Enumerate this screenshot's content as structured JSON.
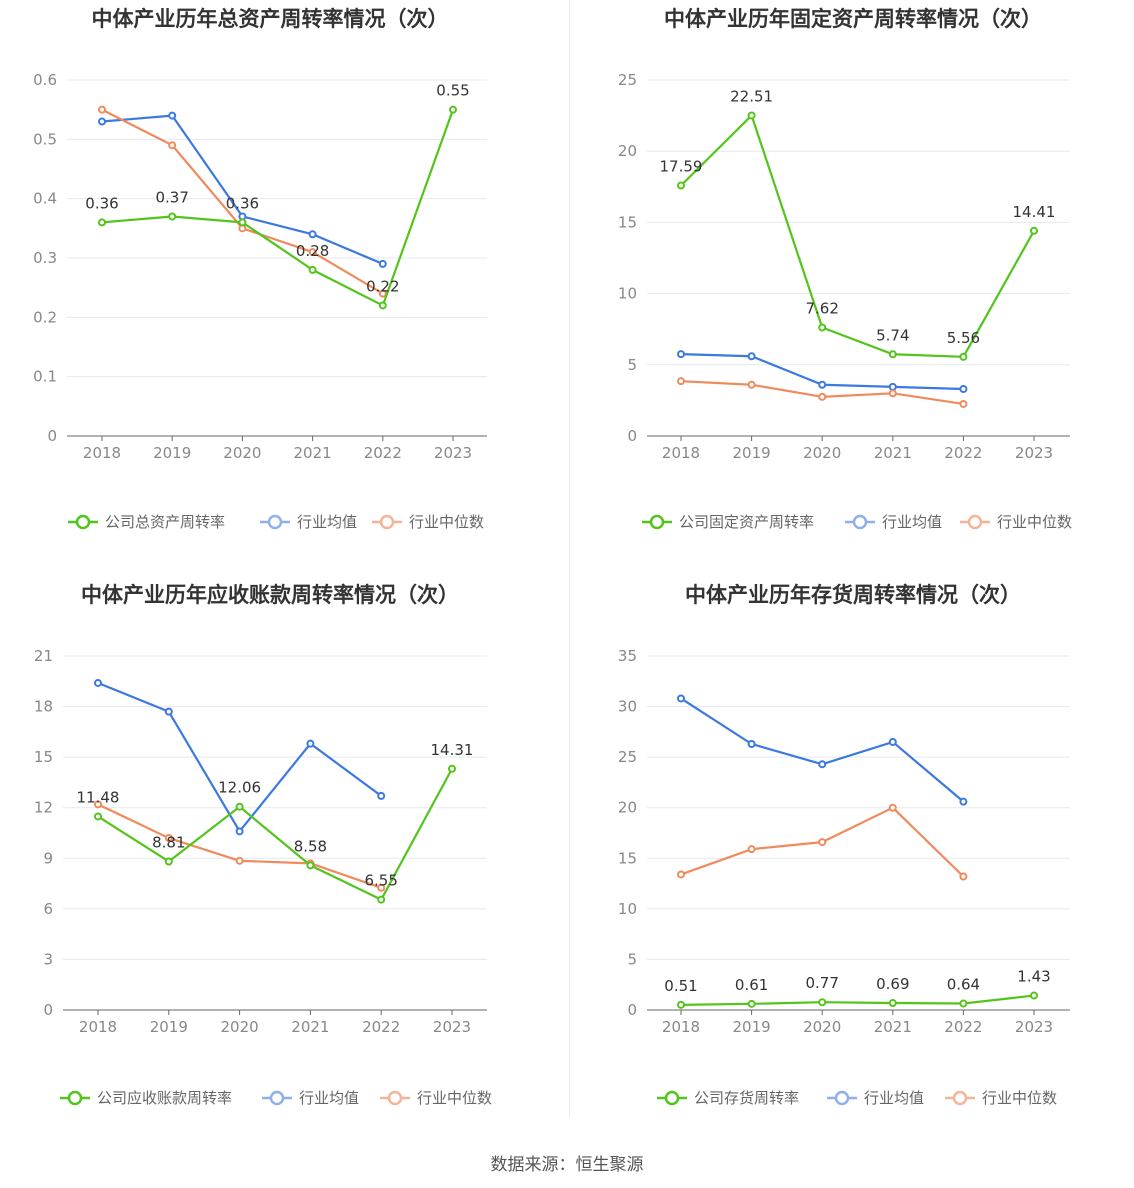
{
  "source_text": "数据来源：恒生聚源",
  "chart_data": [
    {
      "type": "line",
      "title": "中体产业历年总资产周转率情况（次）",
      "categories": [
        "2018",
        "2019",
        "2020",
        "2021",
        "2022",
        "2023"
      ],
      "ylim": [
        0,
        0.6
      ],
      "yticks": [
        "0",
        "0.1",
        "0.2",
        "0.3",
        "0.4",
        "0.5",
        "0.6"
      ],
      "yticks_values": [
        0,
        0.1,
        0.2,
        0.3,
        0.4,
        0.5,
        0.6
      ],
      "grid": true,
      "legend_position": "bottom",
      "series": [
        {
          "name": "公司总资产周转率",
          "color": "#52c41a",
          "values": [
            0.36,
            0.37,
            0.36,
            0.28,
            0.22,
            0.55
          ],
          "labels": [
            "0.36",
            "0.37",
            "0.36",
            "0.28",
            "0.22",
            "0.55"
          ]
        },
        {
          "name": "行业均值",
          "color": "#3b78e0",
          "values": [
            0.53,
            0.54,
            0.37,
            0.34,
            0.29,
            null
          ]
        },
        {
          "name": "行业中位数",
          "color": "#f08a5d",
          "values": [
            0.55,
            0.49,
            0.35,
            0.31,
            0.24,
            null
          ]
        }
      ]
    },
    {
      "type": "line",
      "title": "中体产业历年固定资产周转率情况（次）",
      "categories": [
        "2018",
        "2019",
        "2020",
        "2021",
        "2022",
        "2023"
      ],
      "ylim": [
        0,
        25
      ],
      "yticks": [
        "0",
        "5",
        "10",
        "15",
        "20",
        "25"
      ],
      "yticks_values": [
        0,
        5,
        10,
        15,
        20,
        25
      ],
      "grid": true,
      "legend_position": "bottom",
      "series": [
        {
          "name": "公司固定资产周转率",
          "color": "#52c41a",
          "values": [
            17.59,
            22.51,
            7.62,
            5.74,
            5.56,
            14.41
          ],
          "labels": [
            "17.59",
            "22.51",
            "7.62",
            "5.74",
            "5.56",
            "14.41"
          ]
        },
        {
          "name": "行业均值",
          "color": "#3b78e0",
          "values": [
            5.75,
            5.6,
            3.6,
            3.45,
            3.3,
            null
          ]
        },
        {
          "name": "行业中位数",
          "color": "#f08a5d",
          "values": [
            3.85,
            3.6,
            2.75,
            3.0,
            2.25,
            null
          ]
        }
      ]
    },
    {
      "type": "line",
      "title": "中体产业历年应收账款周转率情况（次）",
      "categories": [
        "2018",
        "2019",
        "2020",
        "2021",
        "2022",
        "2023"
      ],
      "ylim": [
        0,
        21
      ],
      "yticks": [
        "0",
        "3",
        "6",
        "9",
        "12",
        "15",
        "18",
        "21"
      ],
      "yticks_values": [
        0,
        3,
        6,
        9,
        12,
        15,
        18,
        21
      ],
      "grid": true,
      "legend_position": "bottom",
      "series": [
        {
          "name": "公司应收账款周转率",
          "color": "#52c41a",
          "values": [
            11.48,
            8.81,
            12.06,
            8.58,
            6.55,
            14.31
          ],
          "labels": [
            "11.48",
            "8.81",
            "12.06",
            "8.58",
            "6.55",
            "14.31"
          ]
        },
        {
          "name": "行业均值",
          "color": "#3b78e0",
          "values": [
            19.4,
            17.7,
            10.6,
            15.8,
            12.7,
            null
          ]
        },
        {
          "name": "行业中位数",
          "color": "#f08a5d",
          "values": [
            12.2,
            10.2,
            8.85,
            8.7,
            7.25,
            null
          ]
        }
      ]
    },
    {
      "type": "line",
      "title": "中体产业历年存货周转率情况（次）",
      "categories": [
        "2018",
        "2019",
        "2020",
        "2021",
        "2022",
        "2023"
      ],
      "ylim": [
        0,
        35
      ],
      "yticks": [
        "0",
        "5",
        "10",
        "15",
        "20",
        "25",
        "30",
        "35"
      ],
      "yticks_values": [
        0,
        5,
        10,
        15,
        20,
        25,
        30,
        35
      ],
      "grid": true,
      "legend_position": "bottom",
      "series": [
        {
          "name": "公司存货周转率",
          "color": "#52c41a",
          "values": [
            0.51,
            0.61,
            0.77,
            0.69,
            0.64,
            1.43
          ],
          "labels": [
            "0.51",
            "0.61",
            "0.77",
            "0.69",
            "0.64",
            "1.43"
          ]
        },
        {
          "name": "行业均值",
          "color": "#3b78e0",
          "values": [
            30.8,
            26.3,
            24.3,
            26.5,
            20.6,
            null
          ]
        },
        {
          "name": "行业中位数",
          "color": "#f08a5d",
          "values": [
            13.4,
            15.9,
            16.6,
            20.0,
            13.2,
            null
          ]
        }
      ]
    }
  ]
}
